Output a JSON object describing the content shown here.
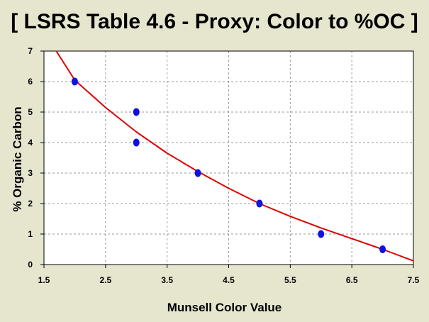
{
  "title": "[ LSRS Table 4.6 - Proxy: Color to %OC ]",
  "chart_data": {
    "type": "scatter",
    "title": "[ LSRS Table 4.6 - Proxy: Color to %OC ]",
    "xlabel": "Munsell Color Value",
    "ylabel": "% Organic Carbon",
    "xlim": [
      1.5,
      7.5
    ],
    "ylim": [
      0,
      7
    ],
    "xticks": [
      "1.5",
      "2.5",
      "3.5",
      "4.5",
      "5.5",
      "6.5",
      "7.5"
    ],
    "yticks": [
      "0",
      "1",
      "2",
      "3",
      "4",
      "5",
      "6",
      "7"
    ],
    "grid": true,
    "background": "#ffffff",
    "page_background": "#e6e6cf",
    "points": {
      "color": "#1010e0",
      "x": [
        2,
        3,
        3,
        4,
        5,
        6,
        7
      ],
      "y": [
        6,
        5,
        4,
        3,
        2,
        1,
        0.5
      ]
    },
    "fit_curve": {
      "color": "#e00000",
      "x": [
        1.7,
        2.0,
        2.5,
        3.0,
        3.5,
        4.0,
        4.5,
        5.0,
        5.5,
        6.0,
        6.5,
        7.0,
        7.5
      ],
      "y": [
        7.0,
        6.05,
        5.15,
        4.35,
        3.65,
        3.05,
        2.5,
        2.0,
        1.58,
        1.2,
        0.85,
        0.5,
        0.12
      ]
    }
  }
}
